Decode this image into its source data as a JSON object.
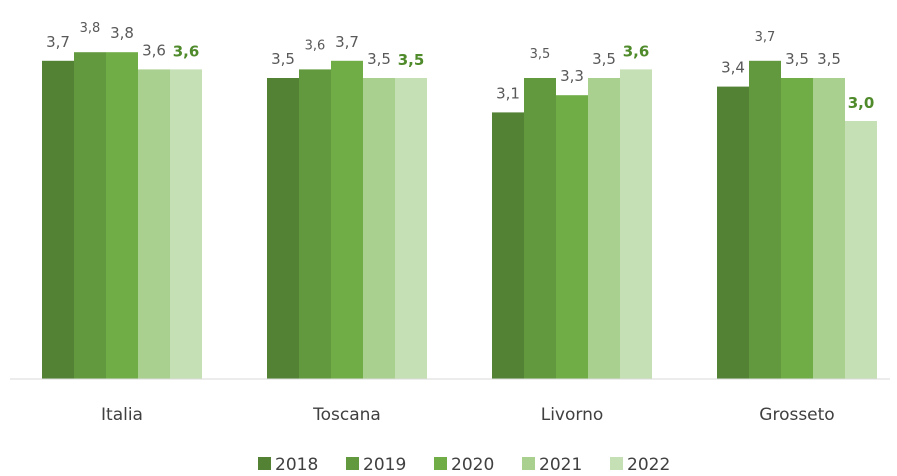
{
  "chart_data": {
    "type": "bar",
    "categories": [
      "Italia",
      "Toscana",
      "Livorno",
      "Grosseto"
    ],
    "series": [
      {
        "name": "2018",
        "color": "#548235",
        "values": [
          3.7,
          3.5,
          3.1,
          3.4
        ],
        "labels": [
          "3,7",
          "3,5",
          "3,1",
          "3,4"
        ]
      },
      {
        "name": "2019",
        "color": "#62993e",
        "values": [
          3.8,
          3.6,
          3.5,
          3.7
        ],
        "labels": [
          "3,8",
          "3,6",
          "3,5",
          "3,7"
        ]
      },
      {
        "name": "2020",
        "color": "#70ad47",
        "values": [
          3.8,
          3.7,
          3.3,
          3.5
        ],
        "labels": [
          "3,8",
          "3,7",
          "3,3",
          "3,5"
        ]
      },
      {
        "name": "2021",
        "color": "#a9d08e",
        "values": [
          3.6,
          3.5,
          3.5,
          3.5
        ],
        "labels": [
          "3,6",
          "3,5",
          "3,5",
          "3,5"
        ]
      },
      {
        "name": "2022",
        "color": "#c5e0b4",
        "values": [
          3.6,
          3.5,
          3.6,
          3.0
        ],
        "labels": [
          "3,6",
          "3,5",
          "3,6",
          "3,0"
        ]
      }
    ],
    "ylim": [
      0,
      4.0
    ],
    "grid": false,
    "legend": "bottom",
    "highlight_series_color": "#4f8a2b"
  }
}
